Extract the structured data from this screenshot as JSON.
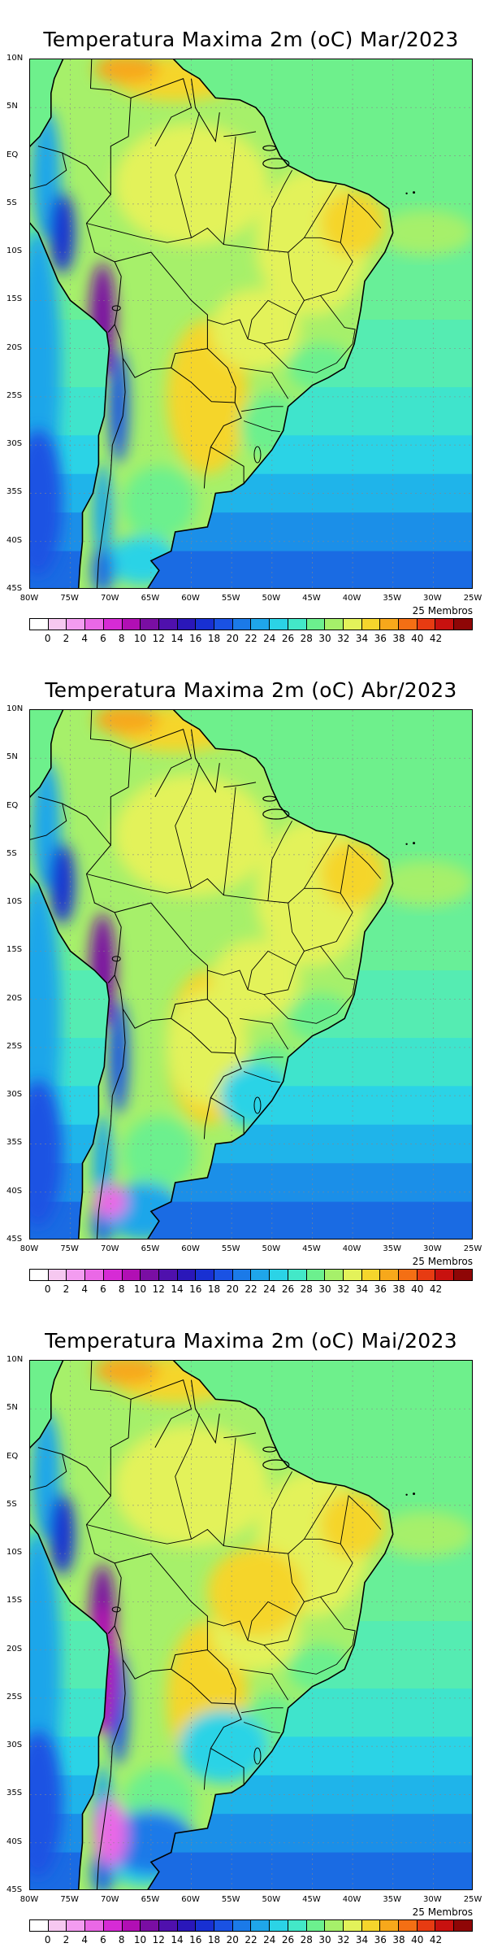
{
  "panels": [
    {
      "title": "Temperatura Maxima 2m (oC) Mar/2023"
    },
    {
      "title": "Temperatura Maxima 2m (oC) Abr/2023"
    },
    {
      "title": "Temperatura Maxima 2m (oC) Mai/2023"
    }
  ],
  "members_label": "25 Membros",
  "lat_labels": [
    "10N",
    "5N",
    "EQ",
    "5S",
    "10S",
    "15S",
    "20S",
    "25S",
    "30S",
    "35S",
    "40S",
    "45S"
  ],
  "lon_labels": [
    "80W",
    "75W",
    "70W",
    "65W",
    "60W",
    "55W",
    "50W",
    "45W",
    "40W",
    "35W",
    "30W",
    "25W"
  ],
  "colorbar": {
    "labels": [
      "0",
      "2",
      "4",
      "6",
      "8",
      "10",
      "12",
      "14",
      "16",
      "18",
      "20",
      "22",
      "24",
      "26",
      "28",
      "30",
      "32",
      "34",
      "36",
      "38",
      "40",
      "42"
    ],
    "colors": [
      "#ffffff",
      "#f6c8f0",
      "#f39cf0",
      "#ea68e6",
      "#d62bd5",
      "#b10fb4",
      "#7a0ea3",
      "#4f10ad",
      "#2a17b9",
      "#1830d2",
      "#1a52e3",
      "#1b7ae8",
      "#1fa6ea",
      "#2bd3e6",
      "#43e8c8",
      "#6cf08e",
      "#a6f06a",
      "#e3f25a",
      "#f5d52c",
      "#f7a81b",
      "#f46f14",
      "#e73b12",
      "#c8110f",
      "#8f0606"
    ]
  }
}
